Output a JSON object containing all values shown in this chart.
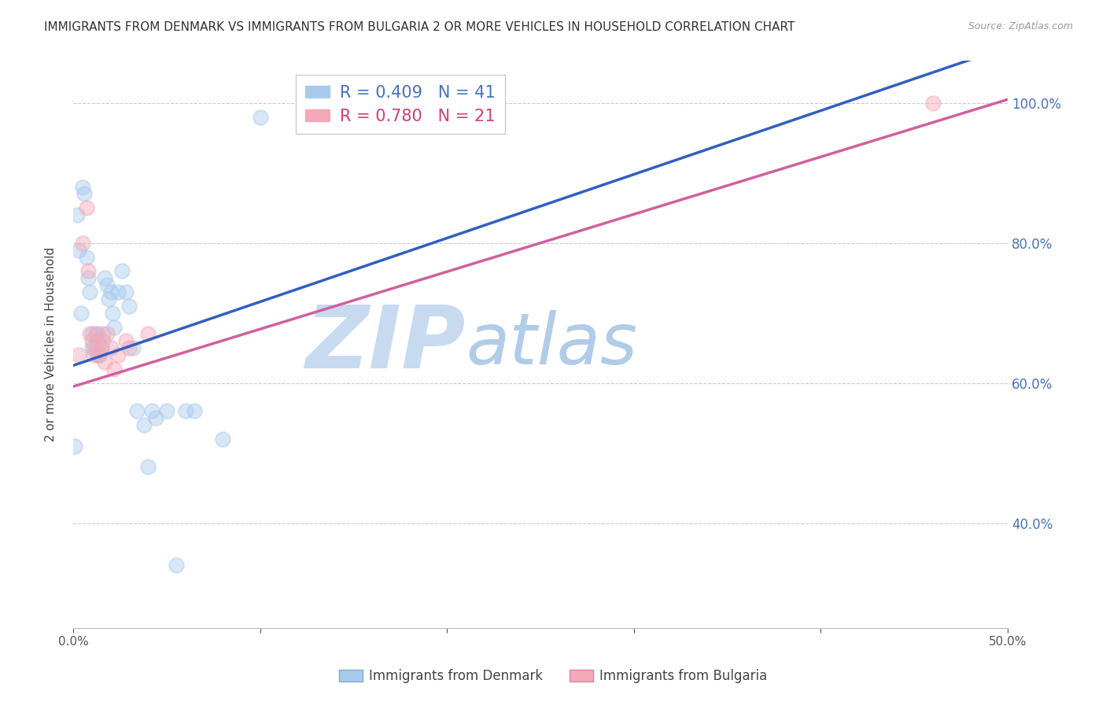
{
  "title": "IMMIGRANTS FROM DENMARK VS IMMIGRANTS FROM BULGARIA 2 OR MORE VEHICLES IN HOUSEHOLD CORRELATION CHART",
  "source": "Source: ZipAtlas.com",
  "ylabel": "2 or more Vehicles in Household",
  "legend_denmark": "Immigrants from Denmark",
  "legend_bulgaria": "Immigrants from Bulgaria",
  "R_denmark": 0.409,
  "N_denmark": 41,
  "R_bulgaria": 0.78,
  "N_bulgaria": 21,
  "xlim": [
    0.0,
    0.5
  ],
  "ylim": [
    0.25,
    1.06
  ],
  "xticks": [
    0.0,
    0.1,
    0.2,
    0.3,
    0.4,
    0.5
  ],
  "yticks": [
    0.4,
    0.6,
    0.8,
    1.0
  ],
  "ytick_labels": [
    "40.0%",
    "60.0%",
    "80.0%",
    "100.0%"
  ],
  "xtick_labels": [
    "0.0%",
    "",
    "",
    "",
    "",
    "50.0%"
  ],
  "color_denmark": "#a8caed",
  "color_bulgaria": "#f4a8b8",
  "line_color_denmark": "#3060c0",
  "line_color_bulgaria": "#d060a0",
  "background_color": "#ffffff",
  "grid_color": "#cccccc",
  "watermark_ZIP": "ZIP",
  "watermark_atlas": "atlas",
  "watermark_color_ZIP": "#c8daf0",
  "watermark_color_atlas": "#b0cce8",
  "denmark_x": [
    0.001,
    0.002,
    0.003,
    0.004,
    0.005,
    0.006,
    0.007,
    0.008,
    0.009,
    0.01,
    0.01,
    0.011,
    0.012,
    0.013,
    0.013,
    0.014,
    0.015,
    0.016,
    0.017,
    0.018,
    0.019,
    0.02,
    0.021,
    0.022,
    0.024,
    0.026,
    0.028,
    0.03,
    0.032,
    0.034,
    0.038,
    0.04,
    0.042,
    0.044,
    0.05,
    0.055,
    0.06,
    0.065,
    0.08,
    0.1,
    0.22
  ],
  "denmark_y": [
    0.51,
    0.84,
    0.79,
    0.7,
    0.88,
    0.87,
    0.78,
    0.75,
    0.73,
    0.67,
    0.65,
    0.65,
    0.67,
    0.66,
    0.64,
    0.64,
    0.65,
    0.67,
    0.75,
    0.74,
    0.72,
    0.73,
    0.7,
    0.68,
    0.73,
    0.76,
    0.73,
    0.71,
    0.65,
    0.56,
    0.54,
    0.48,
    0.56,
    0.55,
    0.56,
    0.34,
    0.56,
    0.56,
    0.52,
    0.98,
    0.99
  ],
  "bulgaria_x": [
    0.003,
    0.005,
    0.007,
    0.008,
    0.009,
    0.01,
    0.011,
    0.012,
    0.013,
    0.014,
    0.015,
    0.016,
    0.017,
    0.018,
    0.02,
    0.022,
    0.024,
    0.028,
    0.03,
    0.04,
    0.46
  ],
  "bulgaria_y": [
    0.64,
    0.8,
    0.85,
    0.76,
    0.67,
    0.66,
    0.64,
    0.65,
    0.67,
    0.64,
    0.65,
    0.66,
    0.63,
    0.67,
    0.65,
    0.62,
    0.64,
    0.66,
    0.65,
    0.67,
    1.0
  ],
  "blue_line_x": [
    0.0,
    0.5
  ],
  "blue_line_y": [
    0.625,
    1.08
  ],
  "pink_line_x": [
    0.0,
    0.5
  ],
  "pink_line_y": [
    0.595,
    1.005
  ]
}
